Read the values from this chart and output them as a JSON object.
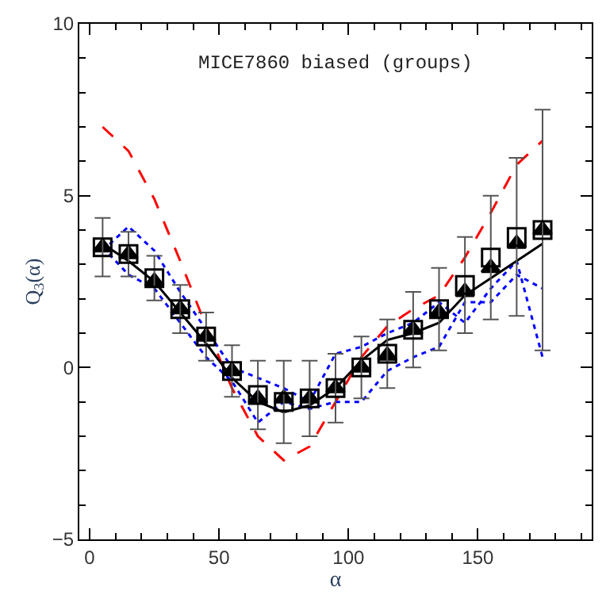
{
  "chart_data": {
    "type": "line",
    "xlabel": "α",
    "ylabel": "Q$_{3}$(α)",
    "annotations": [
      "MICE7860 biased (groups)"
    ],
    "x": [
      5,
      15,
      25,
      35,
      45,
      55,
      65,
      75,
      85,
      95,
      105,
      115,
      125,
      135,
      145,
      155,
      165,
      175
    ],
    "xlim": [
      -4,
      194
    ],
    "xticks": [
      0,
      50,
      100,
      150
    ],
    "ylim": [
      -5,
      10
    ],
    "yticks": [
      {
        "value": -5,
        "label": "−5"
      },
      0,
      5,
      10
    ],
    "series": [
      {
        "color": "#ff0000",
        "line_style": "dashed",
        "marker": "none",
        "values": [
          7.0,
          6.3,
          4.9,
          3.1,
          1.2,
          -0.6,
          -2.0,
          -2.7,
          -2.3,
          -1.0,
          0.3,
          1.2,
          1.7,
          2.1,
          3.2,
          4.5,
          5.9,
          6.6
        ]
      },
      {
        "color": "#0000ff",
        "line_style": "dotted",
        "marker": "none",
        "values": [
          3.4,
          4.1,
          3.4,
          2.2,
          1.1,
          0.0,
          -0.3,
          -0.6,
          -1.0,
          0.4,
          0.6,
          1.0,
          1.3,
          1.9,
          1.3,
          2.3,
          3.1,
          0.3
        ]
      },
      {
        "color": "#0000ff",
        "line_style": "dotted",
        "marker": "none",
        "values": [
          3.5,
          2.7,
          2.3,
          1.3,
          0.3,
          -0.4,
          -1.6,
          -1.0,
          -1.2,
          -1.0,
          -1.0,
          -0.1,
          0.3,
          0.6,
          1.9,
          1.9,
          2.7,
          2.3
        ]
      },
      {
        "color": "#000000",
        "line_style": "solid",
        "marker": "none",
        "values": [
          3.6,
          3.1,
          2.5,
          1.6,
          0.7,
          -0.3,
          -1.0,
          -1.3,
          -1.1,
          -0.6,
          0.2,
          0.8,
          1.0,
          1.3,
          2.1,
          2.6,
          3.1,
          3.6
        ]
      },
      {
        "type": "scatter",
        "color": "#000000",
        "marker": "triangle",
        "values": [
          3.5,
          3.3,
          2.5,
          1.7,
          0.9,
          -0.1,
          -0.9,
          -0.9,
          -0.9,
          -0.6,
          0.0,
          0.35,
          1.1,
          1.6,
          2.2,
          2.9,
          3.6,
          4.0
        ]
      },
      {
        "type": "scatter",
        "color": "#000000",
        "marker": "square",
        "values": [
          3.5,
          3.3,
          2.6,
          1.7,
          0.9,
          -0.1,
          -0.8,
          -1.0,
          -0.9,
          -0.6,
          0.0,
          0.4,
          1.1,
          1.7,
          2.4,
          3.2,
          3.8,
          4.0
        ],
        "errors": [
          0.85,
          0.65,
          0.65,
          0.7,
          0.7,
          0.75,
          1.0,
          1.2,
          1.1,
          1.0,
          0.9,
          1.0,
          1.1,
          1.2,
          1.4,
          1.8,
          2.3,
          3.5
        ]
      }
    ]
  }
}
